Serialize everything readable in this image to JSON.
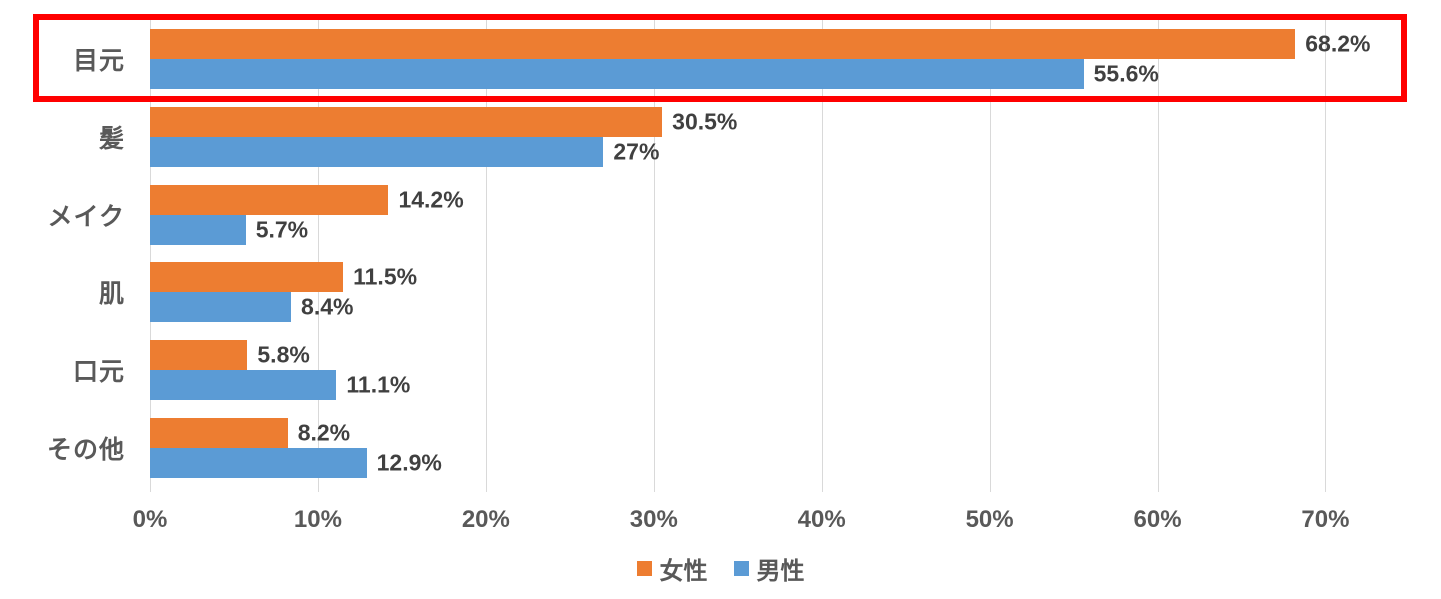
{
  "chart_data": {
    "type": "bar",
    "orientation": "horizontal",
    "title": "",
    "categories": [
      "目元",
      "髪",
      "メイク",
      "肌",
      "口元",
      "その他"
    ],
    "series": [
      {
        "key": "female",
        "name": "女性",
        "color": "#ED7D31",
        "values": [
          68.2,
          30.5,
          14.2,
          11.5,
          5.8,
          8.2
        ],
        "labels": [
          "68.2%",
          "30.5%",
          "14.2%",
          "11.5%",
          "5.8%",
          "8.2%"
        ]
      },
      {
        "key": "male",
        "name": "男性",
        "color": "#5B9BD5",
        "values": [
          55.6,
          27,
          5.7,
          8.4,
          11.1,
          12.9
        ],
        "labels": [
          "55.6%",
          "27%",
          "5.7%",
          "8.4%",
          "11.1%",
          "12.9%"
        ]
      }
    ],
    "x_ticks": [
      {
        "value": 0,
        "label": "0%"
      },
      {
        "value": 10,
        "label": "10%"
      },
      {
        "value": 20,
        "label": "20%"
      },
      {
        "value": 30,
        "label": "30%"
      },
      {
        "value": 40,
        "label": "40%"
      },
      {
        "value": 50,
        "label": "50%"
      },
      {
        "value": 60,
        "label": "60%"
      },
      {
        "value": 70,
        "label": "70%"
      }
    ],
    "x_max": 70.27,
    "grid": true,
    "legend_position": "bottom",
    "highlight": {
      "category": "目元",
      "color": "#FF0000"
    }
  },
  "colors": {
    "gridline": "#D9D9D9",
    "axis_text": "#595959",
    "data_label_text": "#404040",
    "background": "#FFFFFF"
  }
}
